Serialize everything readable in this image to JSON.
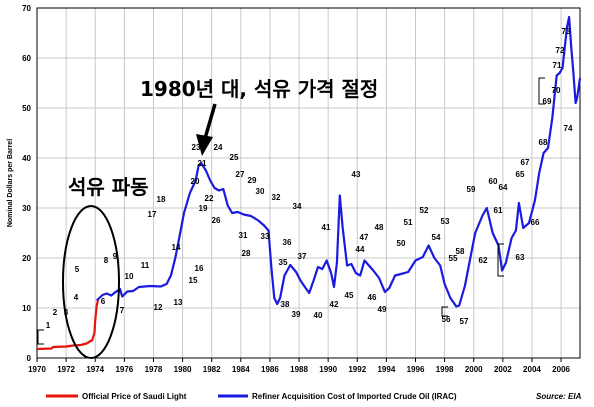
{
  "chart_data": {
    "type": "line",
    "ylabel": "Nominal Dollars per Barrel",
    "xlim": [
      1970,
      2007.3
    ],
    "ylim": [
      0,
      70
    ],
    "x_ticks": [
      "1970",
      "1972",
      "1974",
      "1976",
      "1978",
      "1980",
      "1982",
      "1984",
      "1986",
      "1988",
      "1990",
      "1992",
      "1994",
      "1996",
      "1998",
      "2000",
      "2002",
      "2004",
      "2006"
    ],
    "y_ticks": [
      "0",
      "10",
      "20",
      "30",
      "40",
      "50",
      "60",
      "70"
    ],
    "grid": true,
    "legend_position": "bottom",
    "series": [
      {
        "name": "Official Price of Saudi Light",
        "color": "#e8140c",
        "points": [
          [
            1970,
            1.8
          ],
          [
            1971,
            1.9
          ],
          [
            1971.1,
            2.2
          ],
          [
            1972,
            2.3
          ],
          [
            1972.5,
            2.5
          ],
          [
            1973,
            2.6
          ],
          [
            1973.4,
            2.9
          ],
          [
            1973.8,
            3.6
          ],
          [
            1973.95,
            5.1
          ],
          [
            1974,
            7.5
          ],
          [
            1974.1,
            10.5
          ],
          [
            1974.2,
            11.6
          ]
        ]
      },
      {
        "name": "Refiner Acquisition Cost of Imported Crude Oil (IRAC)",
        "color": "#1a1ae0",
        "points": [
          [
            1974.1,
            11.5
          ],
          [
            1974.5,
            12.6
          ],
          [
            1974.8,
            12.9
          ],
          [
            1975.1,
            12.5
          ],
          [
            1975.4,
            13.2
          ],
          [
            1975.7,
            13.8
          ],
          [
            1975.85,
            12.3
          ],
          [
            1976.2,
            13.3
          ],
          [
            1976.6,
            13.4
          ],
          [
            1977,
            14.2
          ],
          [
            1977.8,
            14.4
          ],
          [
            1978.5,
            14.3
          ],
          [
            1978.9,
            14.8
          ],
          [
            1979.2,
            16.5
          ],
          [
            1979.5,
            20
          ],
          [
            1979.8,
            24.5
          ],
          [
            1980.1,
            29
          ],
          [
            1980.5,
            33
          ],
          [
            1980.9,
            35.5
          ],
          [
            1981.1,
            38.5
          ],
          [
            1981.3,
            38.9
          ],
          [
            1981.6,
            37.5
          ],
          [
            1981.9,
            35.5
          ],
          [
            1982.2,
            34
          ],
          [
            1982.5,
            33.5
          ],
          [
            1982.8,
            33.8
          ],
          [
            1983.1,
            30.5
          ],
          [
            1983.4,
            29
          ],
          [
            1983.8,
            29.2
          ],
          [
            1984.2,
            28.7
          ],
          [
            1984.7,
            28.4
          ],
          [
            1985.2,
            27.5
          ],
          [
            1985.6,
            26.5
          ],
          [
            1985.9,
            25.5
          ],
          [
            1986.1,
            18
          ],
          [
            1986.3,
            12
          ],
          [
            1986.5,
            10.8
          ],
          [
            1986.7,
            12
          ],
          [
            1987,
            16.5
          ],
          [
            1987.4,
            18.6
          ],
          [
            1987.8,
            17.2
          ],
          [
            1988.1,
            15.5
          ],
          [
            1988.4,
            14.2
          ],
          [
            1988.7,
            13
          ],
          [
            1989,
            15.5
          ],
          [
            1989.3,
            18.2
          ],
          [
            1989.6,
            17.8
          ],
          [
            1989.9,
            19.5
          ],
          [
            1990.2,
            17
          ],
          [
            1990.4,
            14.2
          ],
          [
            1990.6,
            19
          ],
          [
            1990.8,
            32.5
          ],
          [
            1991,
            26
          ],
          [
            1991.3,
            18.5
          ],
          [
            1991.6,
            18.8
          ],
          [
            1991.9,
            17
          ],
          [
            1992.2,
            16.5
          ],
          [
            1992.5,
            19.5
          ],
          [
            1992.8,
            18.5
          ],
          [
            1993.1,
            17.5
          ],
          [
            1993.5,
            16
          ],
          [
            1993.9,
            13.2
          ],
          [
            1994.2,
            14
          ],
          [
            1994.6,
            16.5
          ],
          [
            1995,
            16.8
          ],
          [
            1995.5,
            17.2
          ],
          [
            1996,
            19.5
          ],
          [
            1996.5,
            20.2
          ],
          [
            1996.9,
            22.5
          ],
          [
            1997.3,
            20
          ],
          [
            1997.7,
            18.5
          ],
          [
            1998,
            14.8
          ],
          [
            1998.4,
            12
          ],
          [
            1998.8,
            10.3
          ],
          [
            1999,
            10.5
          ],
          [
            1999.4,
            14.5
          ],
          [
            1999.8,
            20.5
          ],
          [
            2000.1,
            25
          ],
          [
            2000.6,
            28.5
          ],
          [
            2000.9,
            30
          ],
          [
            2001.3,
            25
          ],
          [
            2001.7,
            22.5
          ],
          [
            2001.95,
            17.5
          ],
          [
            2002.2,
            19
          ],
          [
            2002.6,
            24
          ],
          [
            2002.9,
            25.5
          ],
          [
            2003.1,
            31
          ],
          [
            2003.4,
            26
          ],
          [
            2003.8,
            27
          ],
          [
            2004.2,
            31.5
          ],
          [
            2004.5,
            37
          ],
          [
            2004.8,
            41
          ],
          [
            2005.1,
            42
          ],
          [
            2005.4,
            48
          ],
          [
            2005.7,
            56.5
          ],
          [
            2005.9,
            57
          ],
          [
            2006.1,
            58
          ],
          [
            2006.4,
            66
          ],
          [
            2006.55,
            68.2
          ],
          [
            2006.7,
            62
          ],
          [
            2006.85,
            57
          ],
          [
            2007,
            51
          ],
          [
            2007.1,
            52
          ],
          [
            2007.3,
            56
          ]
        ]
      }
    ],
    "annotations": [
      "1",
      "2",
      "3",
      "4",
      "5",
      "6",
      "7",
      "8",
      "9",
      "10",
      "11",
      "12",
      "13",
      "14",
      "15",
      "16",
      "17",
      "18",
      "19",
      "20",
      "21",
      "22",
      "23",
      "24",
      "25",
      "26",
      "27",
      "28",
      "29",
      "30",
      "31",
      "32",
      "33",
      "34",
      "35",
      "36",
      "37",
      "38",
      "39",
      "40",
      "41",
      "42",
      "43",
      "44",
      "45",
      "46",
      "47",
      "48",
      "49",
      "50",
      "51",
      "52",
      "53",
      "54",
      "55",
      "56",
      "57",
      "58",
      "59",
      "60",
      "61",
      "62",
      "63",
      "64",
      "65",
      "66",
      "67",
      "68",
      "69",
      "70",
      "71",
      "72",
      "73",
      "74"
    ],
    "callout_1980s": "1980년 대, 석유 가격 절정",
    "callout_shock": "석유 파동",
    "source": "Source: EIA"
  }
}
